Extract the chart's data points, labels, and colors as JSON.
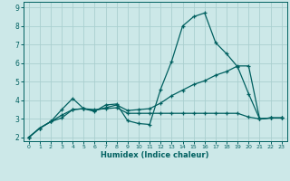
{
  "xlabel": "Humidex (Indice chaleur)",
  "bg_color": "#cce8e8",
  "grid_color": "#aacfcf",
  "line_color": "#006060",
  "xlim": [
    -0.5,
    23.5
  ],
  "ylim": [
    1.8,
    9.3
  ],
  "xticks": [
    0,
    1,
    2,
    3,
    4,
    5,
    6,
    7,
    8,
    9,
    10,
    11,
    12,
    13,
    14,
    15,
    16,
    17,
    18,
    19,
    20,
    21,
    22,
    23
  ],
  "yticks": [
    2,
    3,
    4,
    5,
    6,
    7,
    8,
    9
  ],
  "line1_x": [
    0,
    1,
    2,
    3,
    4,
    5,
    6,
    7,
    8,
    9,
    10,
    11,
    12,
    13,
    14,
    15,
    16,
    17,
    18,
    19,
    20,
    21,
    22,
    23
  ],
  "line1_y": [
    2.0,
    2.5,
    2.85,
    3.5,
    4.1,
    3.55,
    3.4,
    3.75,
    3.8,
    2.9,
    2.75,
    2.7,
    4.6,
    6.1,
    8.0,
    8.5,
    8.7,
    7.1,
    6.5,
    5.8,
    4.35,
    3.0,
    3.05,
    3.05
  ],
  "line2_x": [
    0,
    1,
    2,
    3,
    4,
    5,
    6,
    7,
    8,
    9,
    10,
    11,
    12,
    13,
    14,
    15,
    16,
    17,
    18,
    19,
    20,
    21,
    22,
    23
  ],
  "line2_y": [
    2.0,
    2.5,
    2.85,
    3.2,
    3.5,
    3.55,
    3.5,
    3.55,
    3.6,
    3.3,
    3.3,
    3.3,
    3.3,
    3.3,
    3.3,
    3.3,
    3.3,
    3.3,
    3.3,
    3.3,
    3.1,
    3.0,
    3.05,
    3.05
  ],
  "line3_x": [
    0,
    1,
    2,
    3,
    4,
    5,
    6,
    7,
    8,
    9,
    10,
    11,
    12,
    13,
    14,
    15,
    16,
    17,
    18,
    19,
    20,
    21,
    22,
    23
  ],
  "line3_y": [
    2.0,
    2.5,
    2.85,
    3.05,
    3.5,
    3.55,
    3.45,
    3.6,
    3.75,
    3.45,
    3.5,
    3.55,
    3.85,
    4.25,
    4.55,
    4.85,
    5.05,
    5.35,
    5.55,
    5.85,
    5.85,
    3.0,
    3.05,
    3.05
  ]
}
